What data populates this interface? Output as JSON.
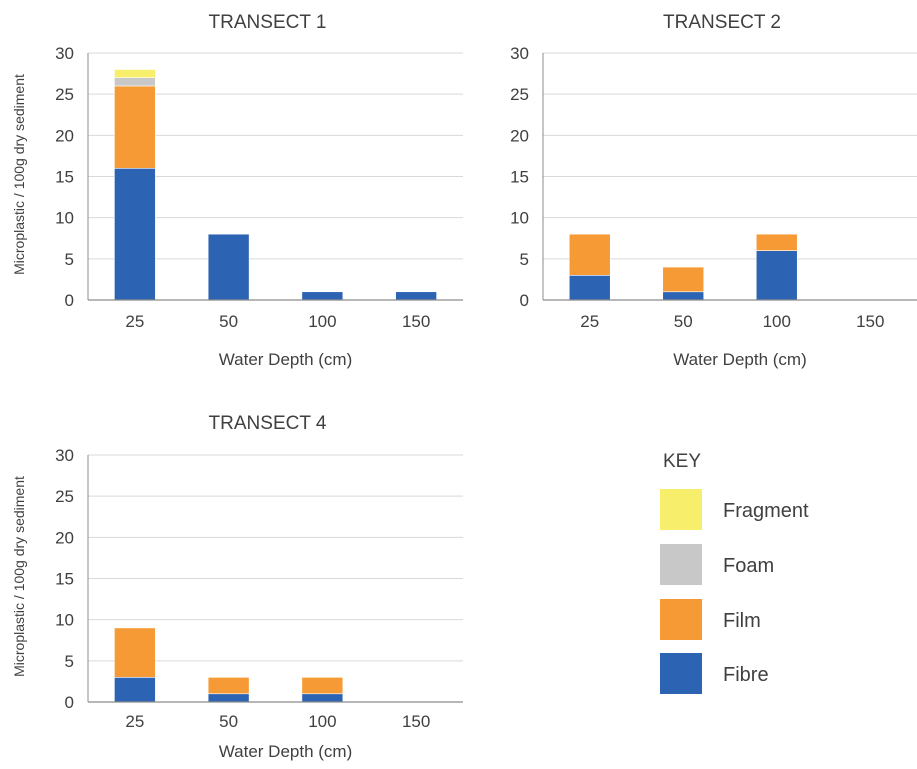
{
  "legend": {
    "title": "KEY",
    "items": [
      {
        "name": "Fragment",
        "color": "#f7ef6b"
      },
      {
        "name": "Foam",
        "color": "#c8c8c8"
      },
      {
        "name": "Film",
        "color": "#f59a34"
      },
      {
        "name": "Fibre",
        "color": "#2c63b2"
      }
    ]
  },
  "chart_data": [
    {
      "type": "bar",
      "stacked": true,
      "title": "TRANSECT 1",
      "xlabel": "Water Depth (cm)",
      "ylabel": "Microplastic / 100g dry sediment",
      "categories": [
        "25",
        "50",
        "100",
        "150"
      ],
      "ylim": [
        0,
        30
      ],
      "yticks": [
        0,
        5,
        10,
        15,
        20,
        25,
        30
      ],
      "grid": true,
      "series": [
        {
          "name": "Fibre",
          "values": [
            16,
            8,
            1,
            1
          ]
        },
        {
          "name": "Film",
          "values": [
            10,
            0,
            0,
            0
          ]
        },
        {
          "name": "Foam",
          "values": [
            1,
            0,
            0,
            0
          ]
        },
        {
          "name": "Fragment",
          "values": [
            1,
            0,
            0,
            0
          ]
        }
      ]
    },
    {
      "type": "bar",
      "stacked": true,
      "title": "TRANSECT 2",
      "xlabel": "Water Depth (cm)",
      "ylabel": "",
      "categories": [
        "25",
        "50",
        "100",
        "150"
      ],
      "ylim": [
        0,
        30
      ],
      "yticks": [
        0,
        5,
        10,
        15,
        20,
        25,
        30
      ],
      "grid": true,
      "series": [
        {
          "name": "Fibre",
          "values": [
            3,
            1,
            6,
            0
          ]
        },
        {
          "name": "Film",
          "values": [
            5,
            3,
            2,
            0
          ]
        },
        {
          "name": "Foam",
          "values": [
            0,
            0,
            0,
            0
          ]
        },
        {
          "name": "Fragment",
          "values": [
            0,
            0,
            0,
            0
          ]
        }
      ]
    },
    {
      "type": "bar",
      "stacked": true,
      "title": "TRANSECT 4",
      "xlabel": "Water Depth (cm)",
      "ylabel": "Microplastic / 100g dry sediment",
      "categories": [
        "25",
        "50",
        "100",
        "150"
      ],
      "ylim": [
        0,
        30
      ],
      "yticks": [
        0,
        5,
        10,
        15,
        20,
        25,
        30
      ],
      "grid": true,
      "series": [
        {
          "name": "Fibre",
          "values": [
            3,
            1,
            1,
            0
          ]
        },
        {
          "name": "Film",
          "values": [
            6,
            2,
            2,
            0
          ]
        },
        {
          "name": "Foam",
          "values": [
            0,
            0,
            0,
            0
          ]
        },
        {
          "name": "Fragment",
          "values": [
            0,
            0,
            0,
            0
          ]
        }
      ]
    }
  ]
}
